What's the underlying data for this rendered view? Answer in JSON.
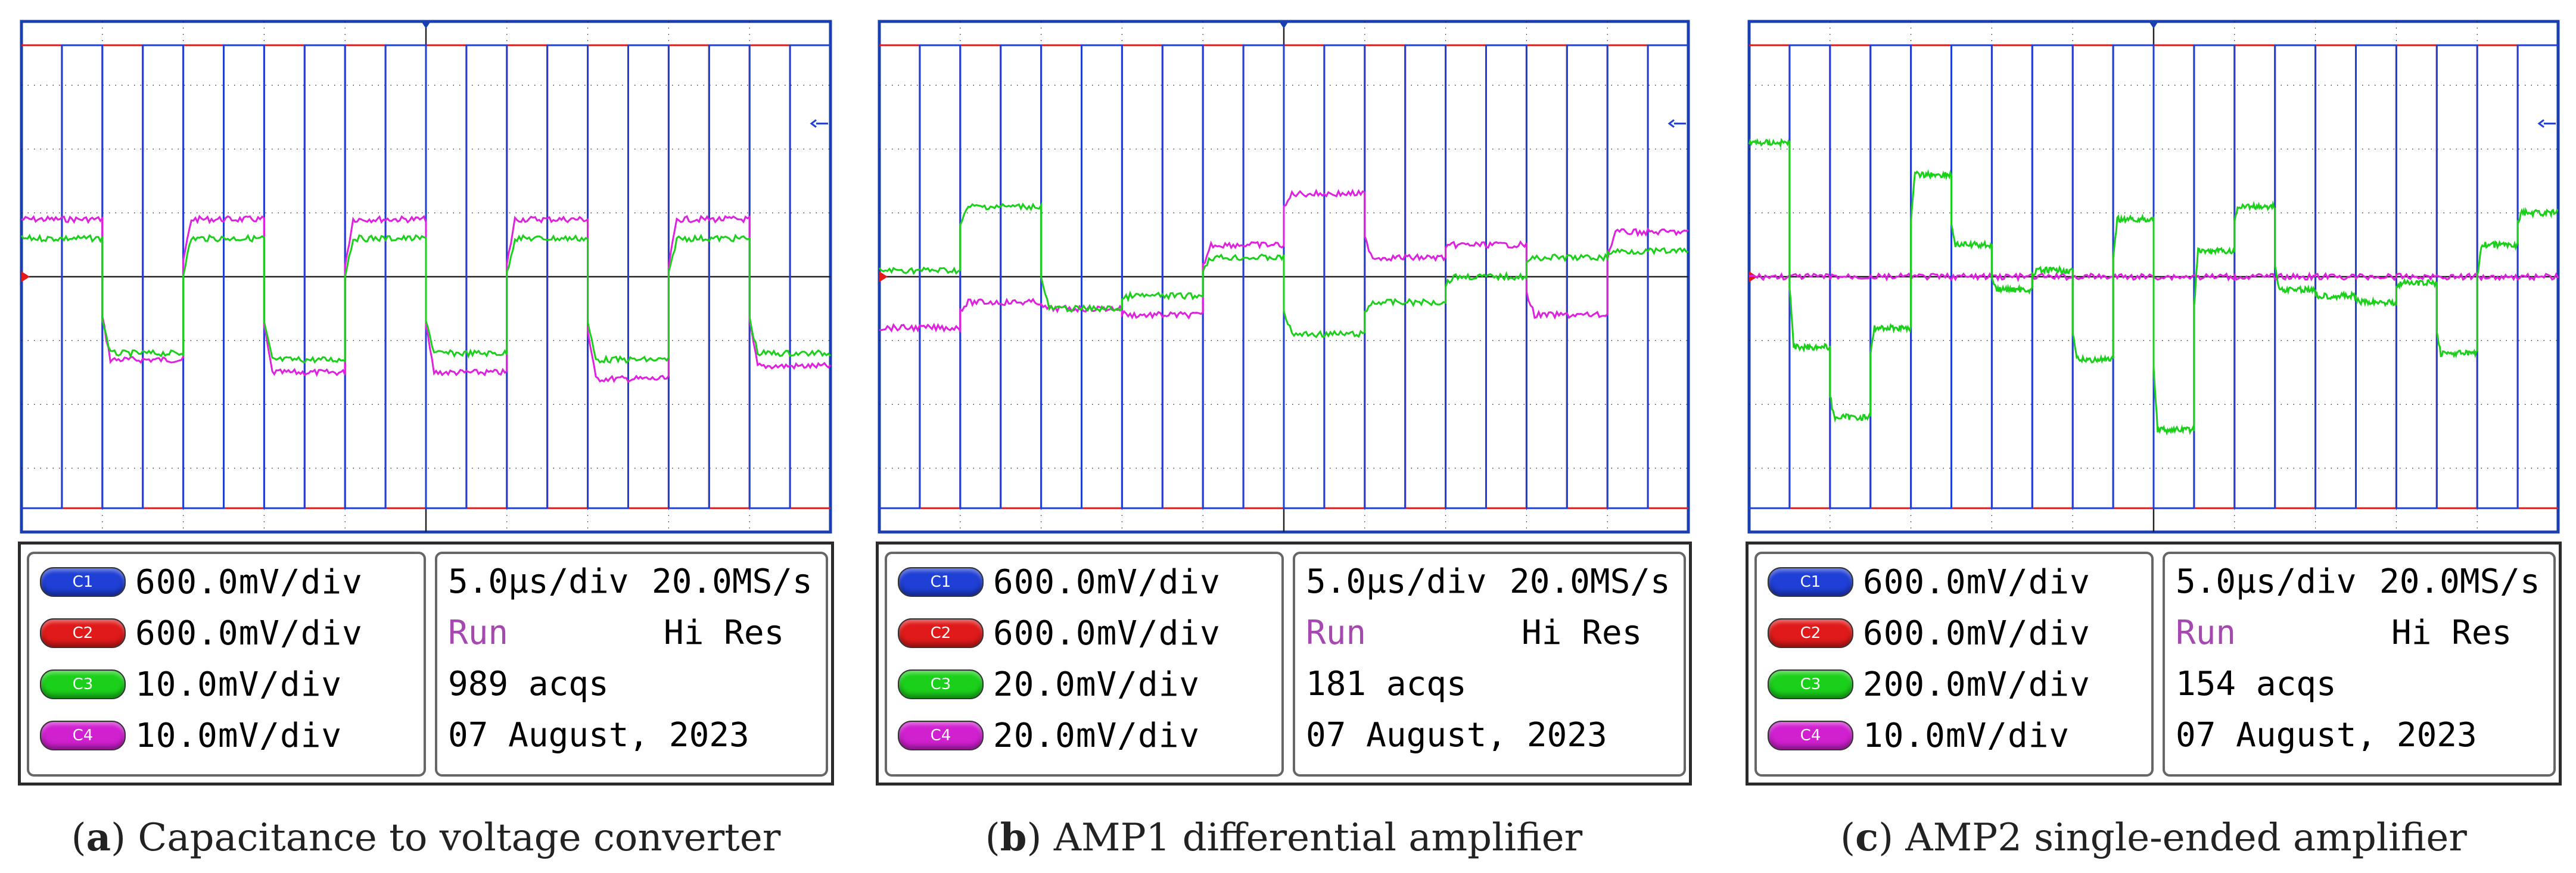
{
  "colors": {
    "C1": "#1f3fd6",
    "C2": "#e01a1a",
    "C3": "#1bd01b",
    "C4": "#e020e0",
    "grid": "#1a1a1a",
    "frame": "#1a3fb0"
  },
  "chart_data": [
    {
      "type": "line",
      "title": "Capacitance to voltage converter",
      "grid": true,
      "x_divisions": 10,
      "y_divisions": 8,
      "series": [
        {
          "name": "C1",
          "scale": "600.0mV/div",
          "description": "square wave, high/low alternating"
        },
        {
          "name": "C2",
          "scale": "600.0mV/div",
          "description": "square wave, inverse of C1"
        },
        {
          "name": "C3",
          "scale": "10.0mV/div",
          "levels_div": [
            0.6,
            -1.2,
            0.6,
            -1.3,
            0.6,
            -1.2,
            0.6,
            -1.3,
            0.6,
            -1.2
          ]
        },
        {
          "name": "C4",
          "scale": "10.0mV/div",
          "levels_div": [
            0.9,
            -1.3,
            0.9,
            -1.5,
            0.9,
            -1.5,
            0.9,
            -1.6,
            0.9,
            -1.4
          ]
        }
      ]
    },
    {
      "type": "line",
      "title": "AMP1 differential amplifier",
      "grid": true,
      "x_divisions": 10,
      "y_divisions": 8,
      "series": [
        {
          "name": "C1",
          "scale": "600.0mV/div"
        },
        {
          "name": "C2",
          "scale": "600.0mV/div"
        },
        {
          "name": "C3",
          "scale": "20.0mV/div",
          "levels_div": [
            0.1,
            1.1,
            -0.5,
            -0.3,
            0.3,
            -0.9,
            -0.4,
            0.0,
            0.3,
            0.4
          ]
        },
        {
          "name": "C4",
          "scale": "20.0mV/div",
          "levels_div": [
            -0.8,
            -0.4,
            -0.5,
            -0.6,
            0.5,
            1.3,
            0.3,
            0.5,
            -0.6,
            0.7
          ]
        }
      ]
    },
    {
      "type": "line",
      "title": "AMP2 single-ended amplifier",
      "grid": true,
      "x_divisions": 10,
      "y_divisions": 8,
      "series": [
        {
          "name": "C1",
          "scale": "600.0mV/div"
        },
        {
          "name": "C2",
          "scale": "600.0mV/div"
        },
        {
          "name": "C3",
          "scale": "200.0mV/div",
          "levels_div": [
            2.1,
            -1.1,
            -2.2,
            -0.8,
            1.6,
            0.5,
            -0.2,
            0.1,
            -1.3,
            0.9,
            -2.4,
            0.4,
            1.1,
            -0.2,
            -0.3,
            -0.4,
            -0.1,
            -1.2,
            0.5,
            1.0
          ]
        },
        {
          "name": "C4",
          "scale": "10.0mV/div",
          "levels_div": [
            0.0,
            0.0,
            0.0,
            0.0,
            0.0,
            0.0,
            0.0,
            0.0,
            0.0,
            0.0
          ]
        }
      ]
    }
  ],
  "panels": [
    {
      "channels": [
        {
          "label": "C1",
          "scale": "600.0mV/div"
        },
        {
          "label": "C2",
          "scale": "600.0mV/div"
        },
        {
          "label": "C3",
          "scale": "10.0mV/div"
        },
        {
          "label": "C4",
          "scale": "10.0mV/div"
        }
      ],
      "timebase": "5.0µs/div",
      "samplerate": "20.0MS/s",
      "status": "Run",
      "mode": "Hi Res",
      "acqs": "989 acqs",
      "date": "07 August, 2023",
      "caption_letter": "a",
      "caption_text": "Capacitance to voltage converter"
    },
    {
      "channels": [
        {
          "label": "C1",
          "scale": "600.0mV/div"
        },
        {
          "label": "C2",
          "scale": "600.0mV/div"
        },
        {
          "label": "C3",
          "scale": "20.0mV/div"
        },
        {
          "label": "C4",
          "scale": "20.0mV/div"
        }
      ],
      "timebase": "5.0µs/div",
      "samplerate": "20.0MS/s",
      "status": "Run",
      "mode": "Hi Res",
      "acqs": "181 acqs",
      "date": "07 August, 2023",
      "caption_letter": "b",
      "caption_text": "AMP1 differential amplifier"
    },
    {
      "channels": [
        {
          "label": "C1",
          "scale": "600.0mV/div"
        },
        {
          "label": "C2",
          "scale": "600.0mV/div"
        },
        {
          "label": "C3",
          "scale": "200.0mV/div"
        },
        {
          "label": "C4",
          "scale": "10.0mV/div"
        }
      ],
      "timebase": "5.0µs/div",
      "samplerate": "20.0MS/s",
      "status": "Run",
      "mode": "Hi Res",
      "acqs": "154 acqs",
      "date": "07 August, 2023",
      "caption_letter": "c",
      "caption_text": "AMP2 single-ended amplifier"
    }
  ]
}
